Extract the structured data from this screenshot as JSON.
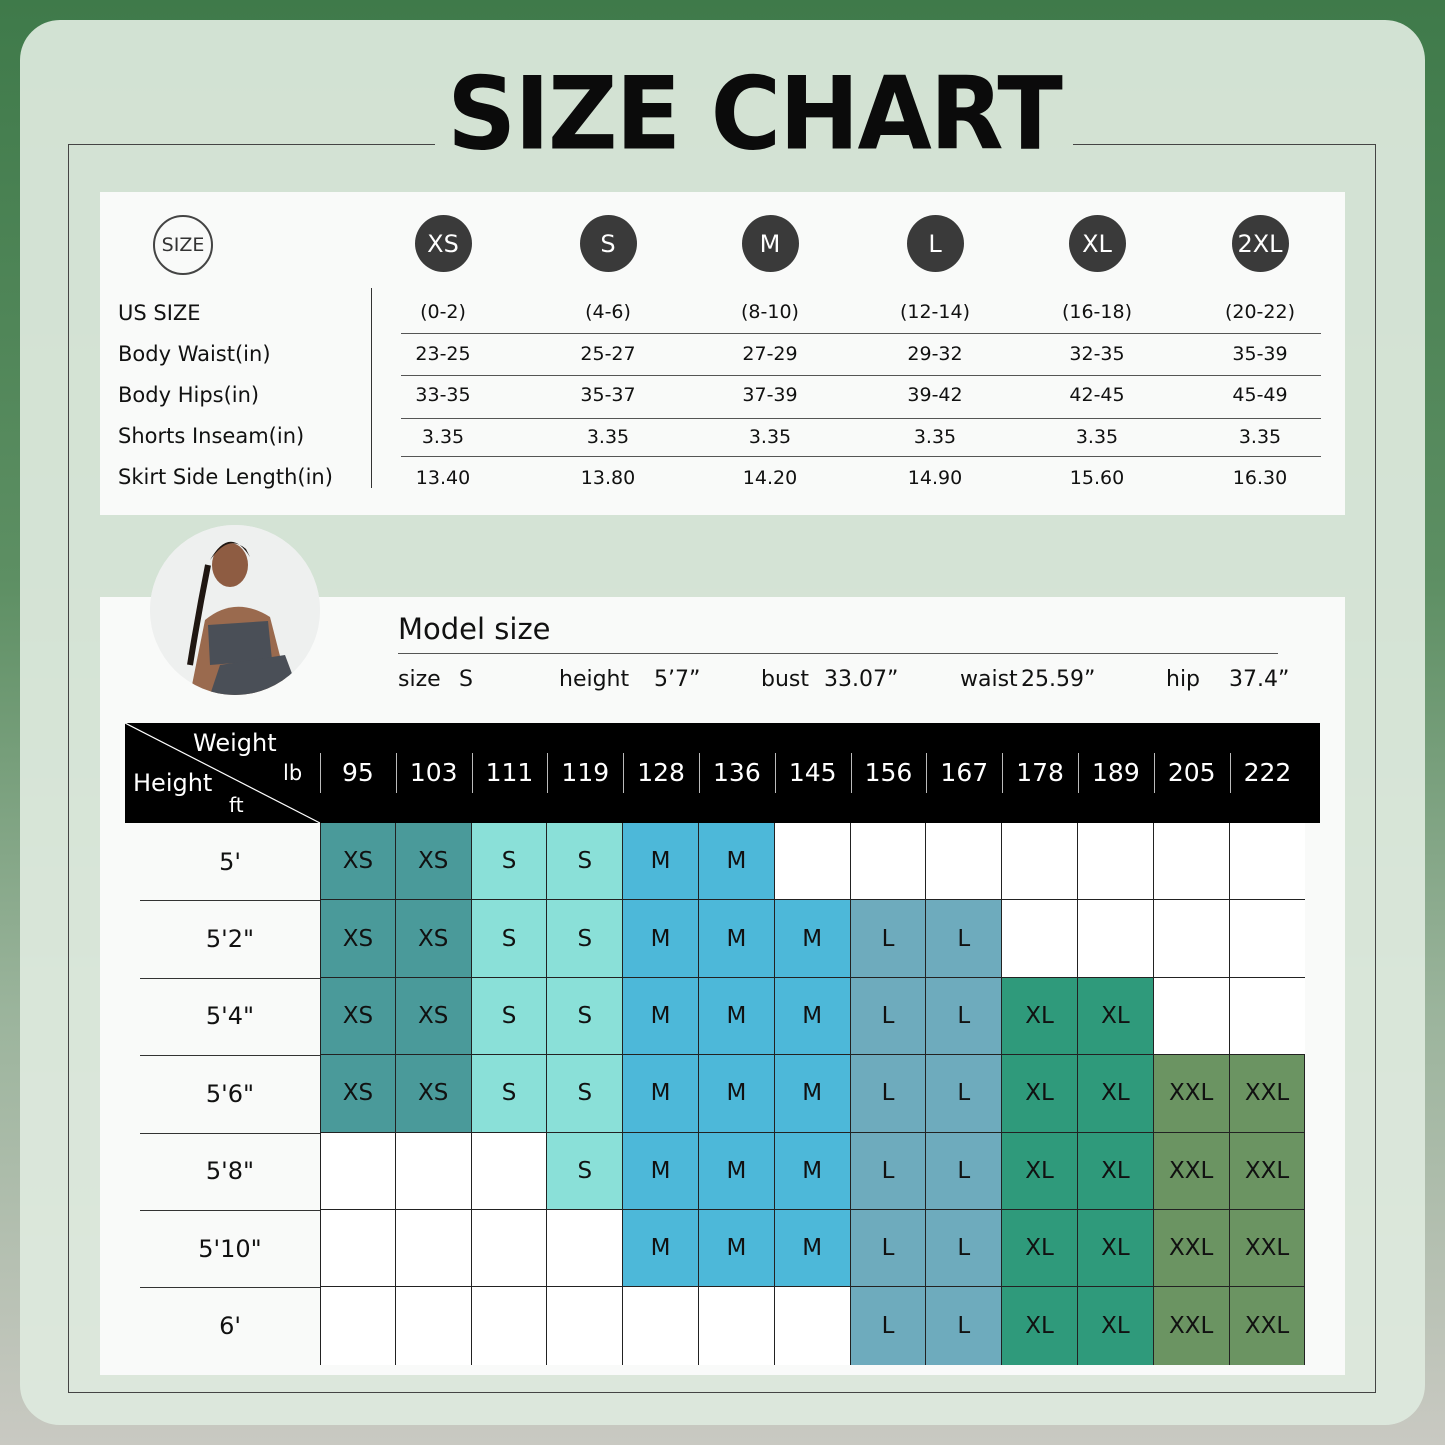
{
  "title": "SIZE CHART",
  "size_badge": "SIZE",
  "size_table": {
    "row_labels": [
      "US SIZE",
      "Body Waist(in)",
      "Body Hips(in)",
      "Shorts Inseam(in)",
      "Skirt Side Length(in)"
    ],
    "sizes": [
      {
        "name": "XS",
        "values": [
          "(0-2)",
          "23-25",
          "33-35",
          "3.35",
          "13.40"
        ]
      },
      {
        "name": "S",
        "values": [
          "(4-6)",
          "25-27",
          "35-37",
          "3.35",
          "13.80"
        ]
      },
      {
        "name": "M",
        "values": [
          "(8-10)",
          "27-29",
          "37-39",
          "3.35",
          "14.20"
        ]
      },
      {
        "name": "L",
        "values": [
          "(12-14)",
          "29-32",
          "39-42",
          "3.35",
          "14.90"
        ]
      },
      {
        "name": "XL",
        "values": [
          "(16-18)",
          "32-35",
          "42-45",
          "3.35",
          "15.60"
        ]
      },
      {
        "name": "2XL",
        "values": [
          "(20-22)",
          "35-39",
          "45-49",
          "3.35",
          "16.30"
        ]
      }
    ]
  },
  "model": {
    "title": "Model size",
    "size_label": "size",
    "size_value": "S",
    "height_label": "height",
    "height_value": "5’7”",
    "bust_label": "bust",
    "bust_value": "33.07”",
    "waist_label": "waist",
    "waist_value": "25.59”",
    "hip_label": "hip",
    "hip_value": "37.4”"
  },
  "grid": {
    "weight_label": "Weight",
    "weight_unit": "lb",
    "height_label": "Height",
    "height_unit": "ft",
    "weights": [
      "95",
      "103",
      "111",
      "119",
      "128",
      "136",
      "145",
      "156",
      "167",
      "178",
      "189",
      "205",
      "222"
    ],
    "heights": [
      "5'",
      "5'2\"",
      "5'4\"",
      "5'6\"",
      "5'8\"",
      "5'10\"",
      "6'"
    ],
    "cells": [
      [
        "XS",
        "XS",
        "S",
        "S",
        "M",
        "M",
        null,
        null,
        null,
        null,
        null,
        null,
        null
      ],
      [
        "XS",
        "XS",
        "S",
        "S",
        "M",
        "M",
        "M",
        "L",
        "L",
        null,
        null,
        null,
        null
      ],
      [
        "XS",
        "XS",
        "S",
        "S",
        "M",
        "M",
        "M",
        "L",
        "L",
        "XL",
        "XL",
        null,
        null
      ],
      [
        "XS",
        "XS",
        "S",
        "S",
        "M",
        "M",
        "M",
        "L",
        "L",
        "XL",
        "XL",
        "XXL",
        "XXL"
      ],
      [
        null,
        null,
        null,
        "S",
        "M",
        "M",
        "M",
        "L",
        "L",
        "XL",
        "XL",
        "XXL",
        "XXL"
      ],
      [
        null,
        null,
        null,
        null,
        "M",
        "M",
        "M",
        "L",
        "L",
        "XL",
        "XL",
        "XXL",
        "XXL"
      ],
      [
        null,
        null,
        null,
        null,
        null,
        null,
        null,
        "L",
        "L",
        "XL",
        "XL",
        "XXL",
        "XXL"
      ]
    ],
    "colors": {
      "XS": "#4a9a9a",
      "S": "#8ae0d8",
      "M": "#4db8d9",
      "L": "#6eabbd",
      "XL": "#2f9a7b",
      "XXL": "#6b9462"
    }
  }
}
